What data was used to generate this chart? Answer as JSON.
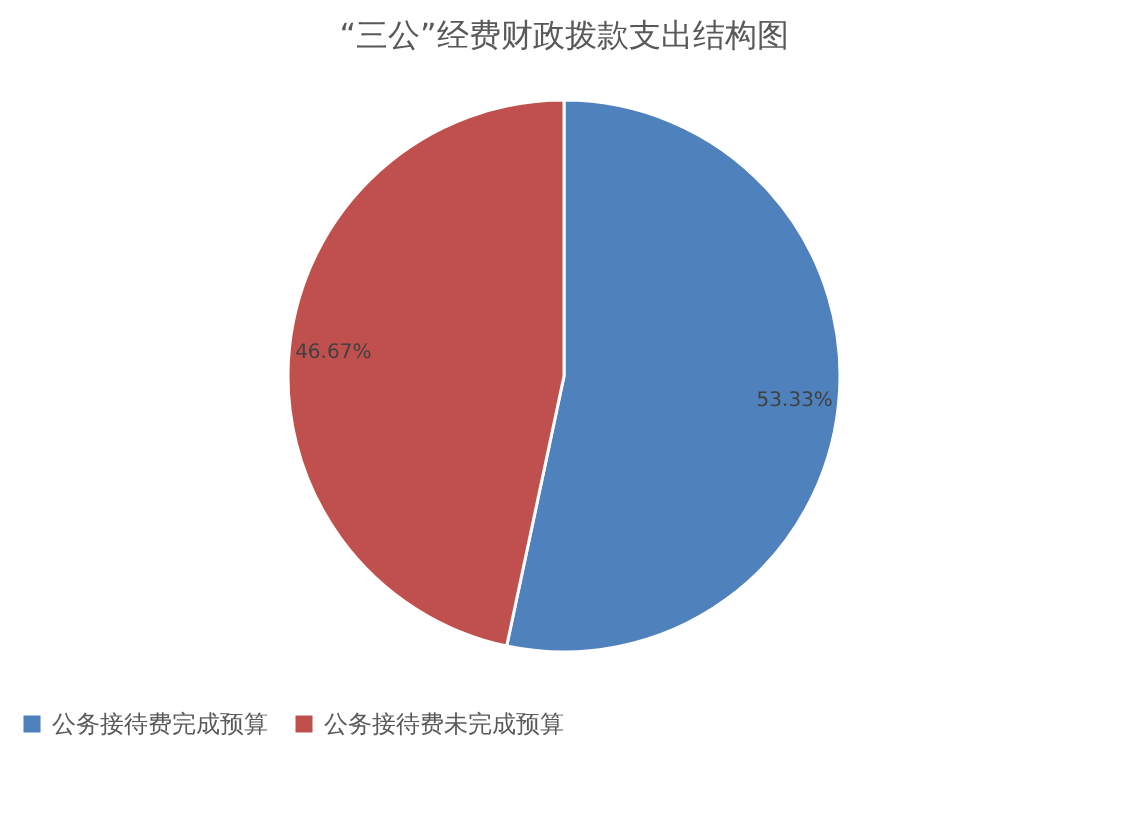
{
  "chart_data": {
    "type": "pie",
    "title": "“三公”经费财政拨款支出结构图",
    "categories": [
      "公务接待费完成预算",
      "公务接待费未完成预算"
    ],
    "values": [
      53.33,
      46.67
    ],
    "colors": [
      "#4f81bd",
      "#c0504d"
    ],
    "value_labels": [
      "53.33%",
      "46.67%"
    ],
    "legend": "bottom"
  }
}
